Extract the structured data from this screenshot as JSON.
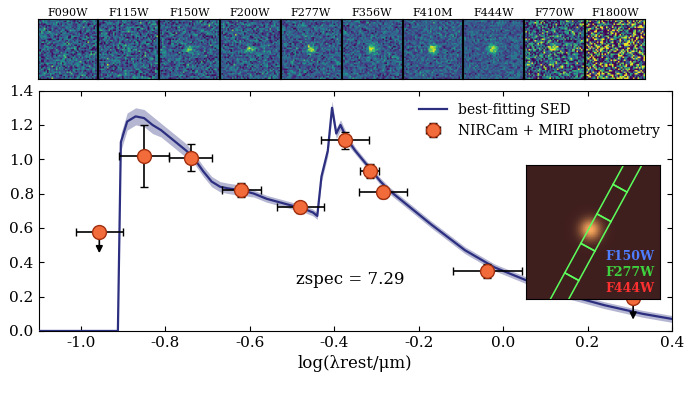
{
  "chart_data": {
    "type": "line",
    "xlabel": "log(λrest/μm)",
    "xlim": [
      -1.1,
      0.4
    ],
    "xticks": [
      -1.0,
      -0.8,
      -0.6,
      -0.4,
      -0.2,
      0.0,
      0.2,
      0.4
    ],
    "ylim": [
      0.0,
      1.4
    ],
    "yticks": [
      0.0,
      0.2,
      0.4,
      0.6,
      0.8,
      1.0,
      1.2,
      1.4
    ],
    "legend": "upper right",
    "annotations": [
      "zspec = 7.29"
    ],
    "filters": [
      "F090W",
      "F115W",
      "F150W",
      "F200W",
      "F277W",
      "F356W",
      "F410M",
      "F444W",
      "F770W",
      "F1800W"
    ],
    "inset_labels": [
      {
        "text": "F150W",
        "color": "#4f7dff"
      },
      {
        "text": "F277W",
        "color": "#3fd23f"
      },
      {
        "text": "F444W",
        "color": "#ff3030"
      }
    ],
    "series": [
      {
        "name": "best-fitting SED",
        "type": "line",
        "color": "#2c2f80",
        "x": [
          -1.1,
          -0.912,
          -0.905,
          -0.89,
          -0.87,
          -0.85,
          -0.83,
          -0.81,
          -0.79,
          -0.77,
          -0.75,
          -0.73,
          -0.71,
          -0.69,
          -0.67,
          -0.65,
          -0.62,
          -0.59,
          -0.56,
          -0.53,
          -0.5,
          -0.47,
          -0.45,
          -0.44,
          -0.43,
          -0.415,
          -0.405,
          -0.395,
          -0.385,
          -0.37,
          -0.35,
          -0.33,
          -0.31,
          -0.29,
          -0.27,
          -0.23,
          -0.17,
          -0.09,
          -0.02,
          0.06,
          0.15,
          0.24,
          0.33,
          0.4
        ],
        "values": [
          0.0,
          0.0,
          1.1,
          1.22,
          1.25,
          1.24,
          1.2,
          1.17,
          1.13,
          1.09,
          1.05,
          1.0,
          0.93,
          0.87,
          0.84,
          0.83,
          0.82,
          0.8,
          0.77,
          0.75,
          0.73,
          0.71,
          0.69,
          0.67,
          0.9,
          1.05,
          1.3,
          1.15,
          1.2,
          1.12,
          1.05,
          0.99,
          0.93,
          0.87,
          0.82,
          0.74,
          0.62,
          0.47,
          0.37,
          0.29,
          0.21,
          0.15,
          0.1,
          0.07
        ],
        "errors": [
          0.0,
          0.0,
          0.05,
          0.05,
          0.05,
          0.05,
          0.05,
          0.04,
          0.04,
          0.04,
          0.04,
          0.03,
          0.03,
          0.03,
          0.03,
          0.03,
          0.03,
          0.02,
          0.02,
          0.02,
          0.02,
          0.02,
          0.02,
          0.02,
          0.03,
          0.03,
          0.04,
          0.03,
          0.03,
          0.03,
          0.02,
          0.02,
          0.02,
          0.02,
          0.02,
          0.02,
          0.02,
          0.02,
          0.02,
          0.02,
          0.02,
          0.02,
          0.02,
          0.02
        ]
      },
      {
        "name": "NIRCam + MIRI photometry",
        "type": "scatter",
        "color": "#f26b3a",
        "x": [
          -0.956,
          -0.85,
          -0.74,
          -0.62,
          -0.48,
          -0.374,
          -0.316,
          -0.284,
          -0.037,
          0.308
        ],
        "values": [
          0.577,
          1.02,
          1.01,
          0.82,
          0.72,
          1.11,
          0.93,
          0.81,
          0.35,
          0.19
        ],
        "x_errors": [
          0.055,
          0.06,
          0.05,
          0.046,
          0.055,
          0.056,
          0.023,
          0.057,
          0.082,
          null
        ],
        "y_errors": [
          null,
          0.18,
          0.08,
          0.04,
          0.03,
          0.05,
          0.04,
          0.035,
          0.04,
          null
        ],
        "upper_limit": [
          true,
          false,
          false,
          false,
          false,
          false,
          false,
          false,
          false,
          true
        ]
      }
    ]
  }
}
